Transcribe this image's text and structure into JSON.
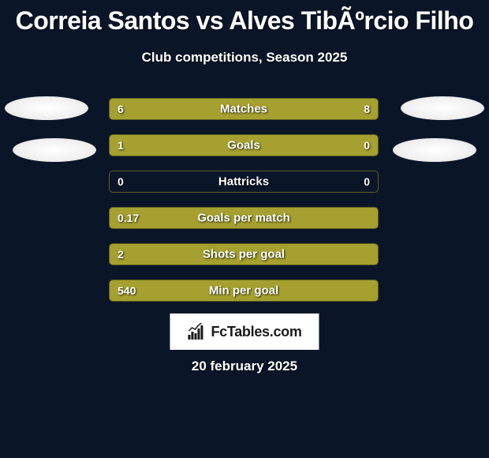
{
  "title": "Correia Santos vs Alves TibÃºrcio Filho",
  "subtitle": "Club competitions, Season 2025",
  "date": "20 february 2025",
  "brand": "FcTables.com",
  "colors": {
    "background": "#0a1628",
    "bar_fill": "#a5a02f",
    "bar_border": "#5d5d1f",
    "text": "#ffffff"
  },
  "stats": [
    {
      "label": "Matches",
      "left_value": "6",
      "right_value": "8",
      "left_pct": 40,
      "right_pct": 60
    },
    {
      "label": "Goals",
      "left_value": "1",
      "right_value": "0",
      "left_pct": 76,
      "right_pct": 24
    },
    {
      "label": "Hattricks",
      "left_value": "0",
      "right_value": "0",
      "left_pct": 0,
      "right_pct": 0
    },
    {
      "label": "Goals per match",
      "left_value": "0.17",
      "right_value": "",
      "left_pct": 100,
      "right_pct": 0
    },
    {
      "label": "Shots per goal",
      "left_value": "2",
      "right_value": "",
      "left_pct": 100,
      "right_pct": 0
    },
    {
      "label": "Min per goal",
      "left_value": "540",
      "right_value": "",
      "left_pct": 100,
      "right_pct": 0
    }
  ]
}
